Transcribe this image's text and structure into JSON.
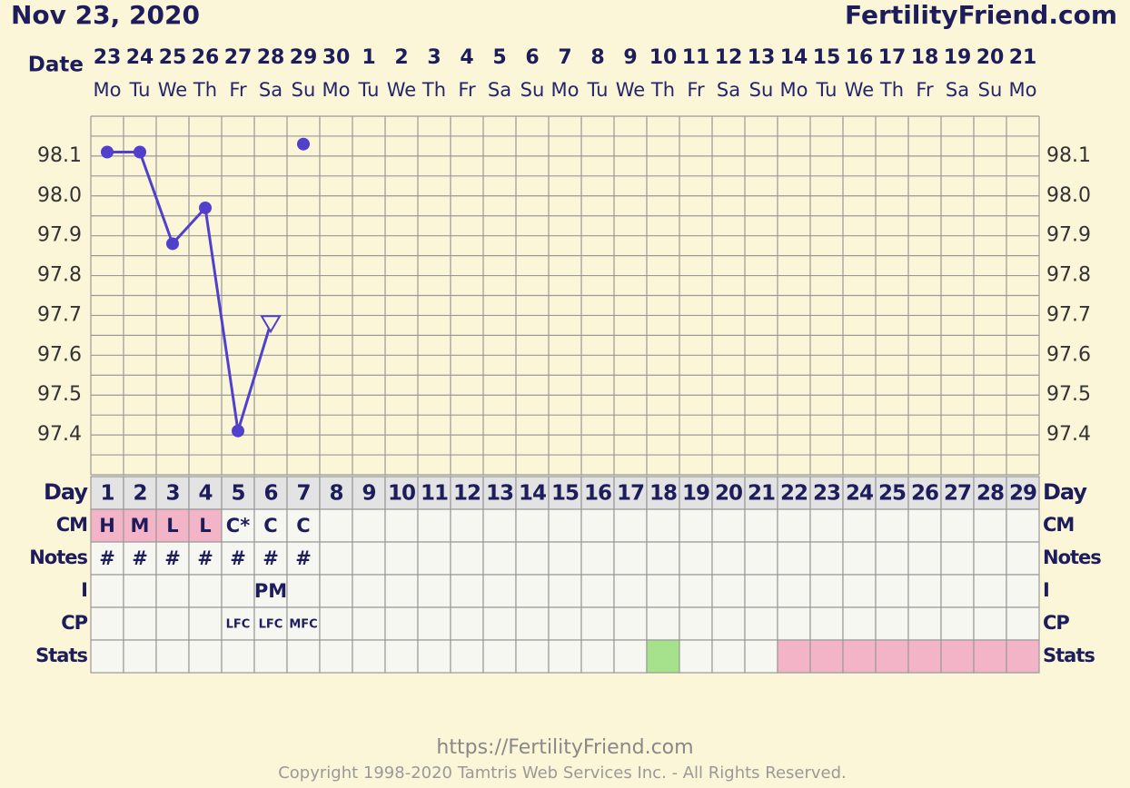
{
  "header": {
    "date": "Nov 23, 2020",
    "site": "FertilityFriend.com"
  },
  "chart_data": {
    "type": "line",
    "date_label": "Date",
    "dates": [
      "23",
      "24",
      "25",
      "26",
      "27",
      "28",
      "29",
      "30",
      "1",
      "2",
      "3",
      "4",
      "5",
      "6",
      "7",
      "8",
      "9",
      "10",
      "11",
      "12",
      "13",
      "14",
      "15",
      "16",
      "17",
      "18",
      "19",
      "20",
      "21"
    ],
    "weekdays": [
      "Mo",
      "Tu",
      "We",
      "Th",
      "Fr",
      "Sa",
      "Su",
      "Mo",
      "Tu",
      "We",
      "Th",
      "Fr",
      "Sa",
      "Su",
      "Mo",
      "Tu",
      "We",
      "Th",
      "Fr",
      "Sa",
      "Su",
      "Mo",
      "Tu",
      "We",
      "Th",
      "Fr",
      "Sa",
      "Su",
      "Mo"
    ],
    "ylim": [
      97.3,
      98.2
    ],
    "yticks": [
      {
        "value": 97.4,
        "label": "97.4"
      },
      {
        "value": 97.5,
        "label": "97.5"
      },
      {
        "value": 97.6,
        "label": "97.6"
      },
      {
        "value": 97.7,
        "label": "97.7"
      },
      {
        "value": 97.8,
        "label": "97.8"
      },
      {
        "value": 97.9,
        "label": "97.9"
      },
      {
        "value": 98.0,
        "label": "98.0"
      },
      {
        "value": 98.1,
        "label": "98.1"
      }
    ],
    "ygrid": [
      97.3,
      97.35,
      97.4,
      97.45,
      97.5,
      97.55,
      97.6,
      97.65,
      97.7,
      97.75,
      97.8,
      97.85,
      97.9,
      97.95,
      98.0,
      98.05,
      98.1,
      98.15,
      98.2
    ],
    "grid": true,
    "series": [
      {
        "color": "#5140cc",
        "values": [
          98.11,
          98.11,
          97.88,
          97.97,
          97.41,
          97.68,
          null,
          null,
          null,
          null,
          null,
          null,
          null,
          null,
          null,
          null,
          null,
          null,
          null,
          null,
          null,
          null,
          null,
          null,
          null,
          null,
          null,
          null,
          null
        ],
        "markers": [
          "dot",
          "dot",
          "dot",
          "dot",
          "dot",
          "open-triangle",
          null,
          null,
          null,
          null,
          null,
          null,
          null,
          null,
          null,
          null,
          null,
          null,
          null,
          null,
          null,
          null,
          null,
          null,
          null,
          null,
          null,
          null,
          null
        ]
      },
      {
        "color": "#5140cc",
        "values": [
          null,
          null,
          null,
          null,
          null,
          null,
          98.13,
          null,
          null,
          null,
          null,
          null,
          null,
          null,
          null,
          null,
          null,
          null,
          null,
          null,
          null,
          null,
          null,
          null,
          null,
          null,
          null,
          null,
          null
        ],
        "markers": [
          null,
          null,
          null,
          null,
          null,
          null,
          "dot",
          null,
          null,
          null,
          null,
          null,
          null,
          null,
          null,
          null,
          null,
          null,
          null,
          null,
          null,
          null,
          null,
          null,
          null,
          null,
          null,
          null,
          null
        ]
      }
    ]
  },
  "table": {
    "rows": [
      {
        "label": "Day",
        "header": true,
        "cells": [
          "1",
          "2",
          "3",
          "4",
          "5",
          "6",
          "7",
          "8",
          "9",
          "10",
          "11",
          "12",
          "13",
          "14",
          "15",
          "16",
          "17",
          "18",
          "19",
          "20",
          "21",
          "22",
          "23",
          "24",
          "25",
          "26",
          "27",
          "28",
          "29"
        ]
      },
      {
        "label": "CM",
        "cells": [
          "H",
          "M",
          "L",
          "L",
          "C*",
          "C",
          "C",
          null,
          null,
          null,
          null,
          null,
          null,
          null,
          null,
          null,
          null,
          null,
          null,
          null,
          null,
          null,
          null,
          null,
          null,
          null,
          null,
          null,
          null
        ],
        "fills": [
          "#f4b4c8",
          "#f4b4c8",
          "#f4b4c8",
          "#f4b4c8",
          null,
          null,
          null,
          null,
          null,
          null,
          null,
          null,
          null,
          null,
          null,
          null,
          null,
          null,
          null,
          null,
          null,
          null,
          null,
          null,
          null,
          null,
          null,
          null,
          null
        ]
      },
      {
        "label": "Notes",
        "cells": [
          "#",
          "#",
          "#",
          "#",
          "#",
          "#",
          "#",
          null,
          null,
          null,
          null,
          null,
          null,
          null,
          null,
          null,
          null,
          null,
          null,
          null,
          null,
          null,
          null,
          null,
          null,
          null,
          null,
          null,
          null
        ]
      },
      {
        "label": "I",
        "cells": [
          null,
          null,
          null,
          null,
          null,
          "PM",
          null,
          null,
          null,
          null,
          null,
          null,
          null,
          null,
          null,
          null,
          null,
          null,
          null,
          null,
          null,
          null,
          null,
          null,
          null,
          null,
          null,
          null,
          null
        ]
      },
      {
        "label": "CP",
        "small": true,
        "cells": [
          null,
          null,
          null,
          null,
          "LFC",
          "LFC",
          "MFC",
          null,
          null,
          null,
          null,
          null,
          null,
          null,
          null,
          null,
          null,
          null,
          null,
          null,
          null,
          null,
          null,
          null,
          null,
          null,
          null,
          null,
          null
        ]
      },
      {
        "label": "Stats",
        "cells": [
          null,
          null,
          null,
          null,
          null,
          null,
          null,
          null,
          null,
          null,
          null,
          null,
          null,
          null,
          null,
          null,
          null,
          null,
          null,
          null,
          null,
          null,
          null,
          null,
          null,
          null,
          null,
          null,
          null
        ],
        "fills": [
          null,
          null,
          null,
          null,
          null,
          null,
          null,
          null,
          null,
          null,
          null,
          null,
          null,
          null,
          null,
          null,
          null,
          "#a6e28c",
          null,
          null,
          null,
          "#f4b4c8",
          "#f4b4c8",
          "#f4b4c8",
          "#f4b4c8",
          "#f4b4c8",
          "#f4b4c8",
          "#f4b4c8",
          "#f4b4c8"
        ]
      }
    ]
  },
  "footer": {
    "url": "https://FertilityFriend.com",
    "copyright": "Copyright 1998-2020 Tamtris Web Services Inc. - All Rights Reserved."
  }
}
